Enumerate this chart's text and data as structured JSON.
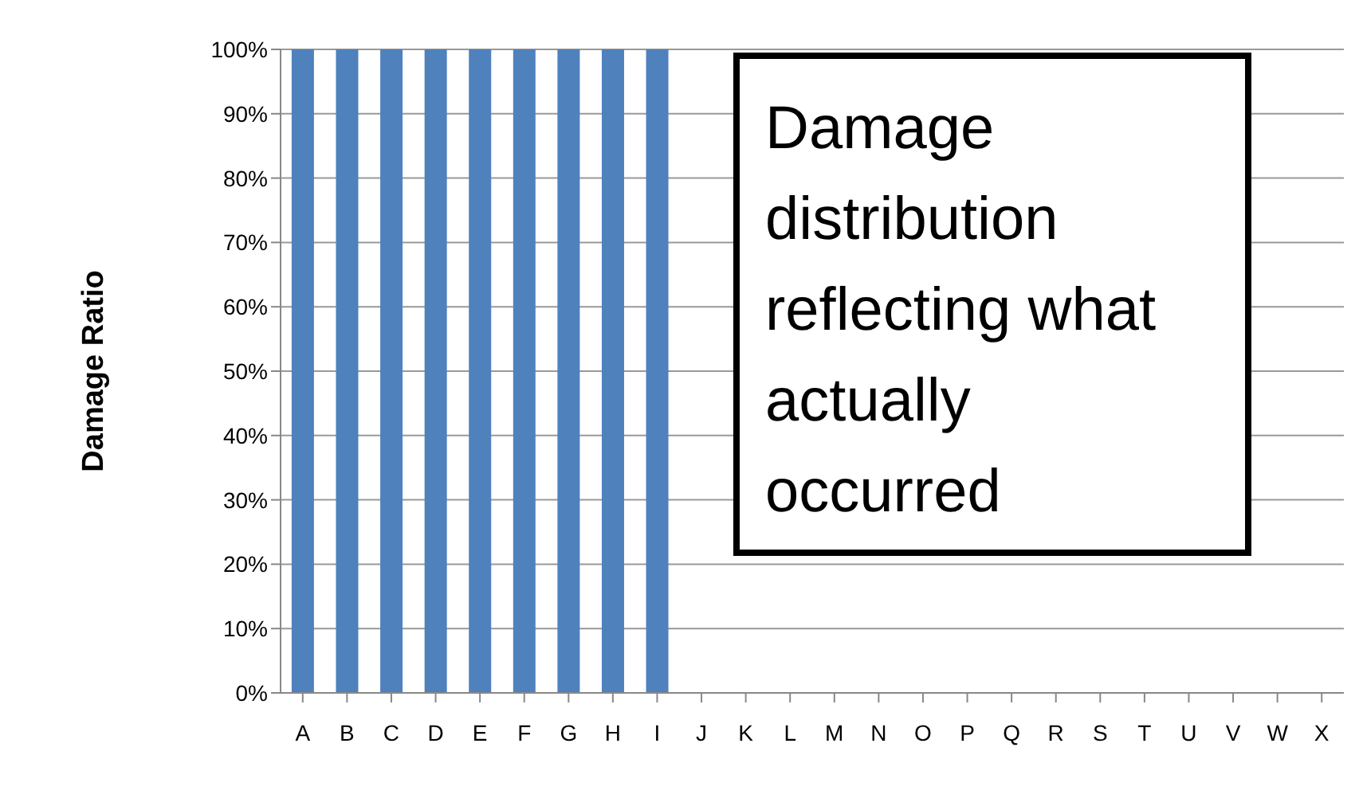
{
  "chart_data": {
    "type": "bar",
    "ylabel": "Damage Ratio",
    "categories": [
      "A",
      "B",
      "C",
      "D",
      "E",
      "F",
      "G",
      "H",
      "I",
      "J",
      "K",
      "L",
      "M",
      "N",
      "O",
      "P",
      "Q",
      "R",
      "S",
      "T",
      "U",
      "V",
      "W",
      "X"
    ],
    "values": [
      100,
      100,
      100,
      100,
      100,
      100,
      100,
      100,
      100,
      0,
      0,
      0,
      0,
      0,
      0,
      0,
      0,
      0,
      0,
      0,
      0,
      0,
      0,
      0
    ],
    "color": "#4f81bd",
    "ylim": [
      0,
      100
    ],
    "yticks": [
      {
        "value": 0,
        "label": "0%"
      },
      {
        "value": 10,
        "label": "10%"
      },
      {
        "value": 20,
        "label": "20%"
      },
      {
        "value": 30,
        "label": "30%"
      },
      {
        "value": 40,
        "label": "40%"
      },
      {
        "value": 50,
        "label": "50%"
      },
      {
        "value": 60,
        "label": "60%"
      },
      {
        "value": 70,
        "label": "70%"
      },
      {
        "value": 80,
        "label": "80%"
      },
      {
        "value": 90,
        "label": "90%"
      },
      {
        "value": 100,
        "label": "100%"
      }
    ],
    "grid": "y",
    "annotations": [
      "Damage distribution reflecting what actually occurred"
    ]
  }
}
